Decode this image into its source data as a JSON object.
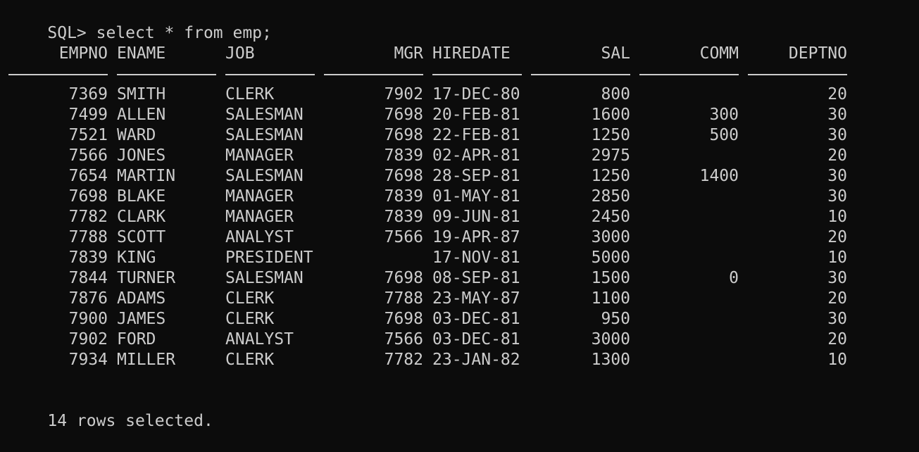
{
  "window": {
    "background": "#0c0c0c",
    "foreground": "#cccccc"
  },
  "prompt": {
    "text": "SQL> select * from emp;"
  },
  "table": {
    "columns": [
      "EMPNO",
      "ENAME",
      "JOB",
      "MGR",
      "HIREDATE",
      "SAL",
      "COMM",
      "DEPTNO"
    ],
    "rows": [
      [
        "7369",
        "SMITH",
        "CLERK",
        "7902",
        "17-DEC-80",
        "800",
        "",
        "20"
      ],
      [
        "7499",
        "ALLEN",
        "SALESMAN",
        "7698",
        "20-FEB-81",
        "1600",
        "300",
        "30"
      ],
      [
        "7521",
        "WARD",
        "SALESMAN",
        "7698",
        "22-FEB-81",
        "1250",
        "500",
        "30"
      ],
      [
        "7566",
        "JONES",
        "MANAGER",
        "7839",
        "02-APR-81",
        "2975",
        "",
        "20"
      ],
      [
        "7654",
        "MARTIN",
        "SALESMAN",
        "7698",
        "28-SEP-81",
        "1250",
        "1400",
        "30"
      ],
      [
        "7698",
        "BLAKE",
        "MANAGER",
        "7839",
        "01-MAY-81",
        "2850",
        "",
        "30"
      ],
      [
        "7782",
        "CLARK",
        "MANAGER",
        "7839",
        "09-JUN-81",
        "2450",
        "",
        "10"
      ],
      [
        "7788",
        "SCOTT",
        "ANALYST",
        "7566",
        "19-APR-87",
        "3000",
        "",
        "20"
      ],
      [
        "7839",
        "KING",
        "PRESIDENT",
        "",
        "17-NOV-81",
        "5000",
        "",
        "10"
      ],
      [
        "7844",
        "TURNER",
        "SALESMAN",
        "7698",
        "08-SEP-81",
        "1500",
        "0",
        "30"
      ],
      [
        "7876",
        "ADAMS",
        "CLERK",
        "7788",
        "23-MAY-87",
        "1100",
        "",
        "20"
      ],
      [
        "7900",
        "JAMES",
        "CLERK",
        "7698",
        "03-DEC-81",
        "950",
        "",
        "30"
      ],
      [
        "7902",
        "FORD",
        "ANALYST",
        "7566",
        "03-DEC-81",
        "3000",
        "",
        "20"
      ],
      [
        "7934",
        "MILLER",
        "CLERK",
        "7782",
        "23-JAN-82",
        "1300",
        "",
        "10"
      ]
    ]
  },
  "footer": {
    "text": "14 rows selected."
  }
}
